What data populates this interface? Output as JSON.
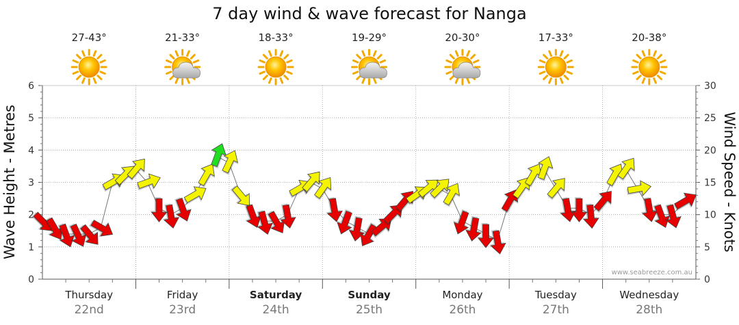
{
  "chart_data": {
    "type": "line",
    "title": "7 day wind & wave forecast for Nanga",
    "ylabel": "Wave Height - Metres",
    "y2label": "Wind Speed - Knots",
    "ylim": [
      0,
      6
    ],
    "y2lim": [
      0,
      30
    ],
    "yticks": [
      "0",
      "1",
      "2",
      "3",
      "4",
      "5",
      "6"
    ],
    "y2ticks": [
      "0",
      "5",
      "10",
      "15",
      "20",
      "25",
      "30"
    ],
    "grid": true,
    "credit": "www.seabreeze.com.au",
    "days": [
      {
        "name": "Thursday",
        "date": "22nd",
        "temp": "27-43°",
        "weather": "sunny-icon",
        "bold": false
      },
      {
        "name": "Friday",
        "date": "23rd",
        "temp": "21-33°",
        "weather": "sun-cloud-icon",
        "bold": false
      },
      {
        "name": "Saturday",
        "date": "24th",
        "temp": "18-33°",
        "weather": "sunny-icon",
        "bold": true
      },
      {
        "name": "Sunday",
        "date": "25th",
        "temp": "19-29°",
        "weather": "sun-cloud-icon",
        "bold": true
      },
      {
        "name": "Monday",
        "date": "26th",
        "temp": "20-30°",
        "weather": "sun-cloud-icon",
        "bold": false
      },
      {
        "name": "Tuesday",
        "date": "27th",
        "temp": "17-33°",
        "weather": "sunny-icon",
        "bold": false
      },
      {
        "name": "Wednesday",
        "date": "28th",
        "temp": "20-38°",
        "weather": "sunny-icon",
        "bold": false
      }
    ],
    "wind": {
      "name": "Wind Speed (knots)",
      "unit": "knots",
      "x_hours": [
        0,
        3,
        6,
        9,
        12,
        15,
        18,
        21,
        24,
        27,
        30,
        33,
        36,
        39,
        42,
        45,
        48,
        51,
        54,
        57,
        60,
        63,
        66,
        69,
        72,
        75,
        78,
        81,
        84,
        87,
        90,
        93,
        96,
        99,
        102,
        105,
        108,
        111,
        114,
        117,
        120,
        123,
        126,
        129,
        132,
        135,
        138,
        141,
        144,
        147,
        150,
        153,
        156,
        159,
        162,
        165
      ],
      "speed": [
        9,
        8,
        7,
        7,
        7,
        8,
        15,
        16,
        17,
        15,
        11,
        10,
        11,
        13,
        16,
        19,
        18,
        13,
        10,
        9,
        9,
        10,
        14,
        15,
        14,
        11,
        9,
        8,
        7,
        8,
        10,
        12,
        13,
        14,
        14,
        13,
        9,
        8,
        7,
        6,
        12,
        14,
        16,
        17,
        14,
        11,
        11,
        10,
        12,
        16,
        17,
        14,
        11,
        10,
        10,
        12
      ],
      "direction_deg": [
        135,
        150,
        160,
        155,
        140,
        120,
        60,
        45,
        40,
        70,
        180,
        170,
        160,
        60,
        30,
        20,
        25,
        140,
        160,
        165,
        150,
        170,
        60,
        40,
        35,
        170,
        200,
        190,
        210,
        50,
        45,
        40,
        55,
        50,
        45,
        30,
        200,
        190,
        180,
        170,
        30,
        35,
        30,
        20,
        40,
        170,
        180,
        175,
        40,
        30,
        35,
        80,
        170,
        160,
        165,
        60
      ],
      "color_scale": [
        {
          "max": 12,
          "color": "#e60000"
        },
        {
          "max": 18,
          "color": "#f4f400"
        },
        {
          "max": 25,
          "color": "#22dd22"
        }
      ]
    }
  }
}
